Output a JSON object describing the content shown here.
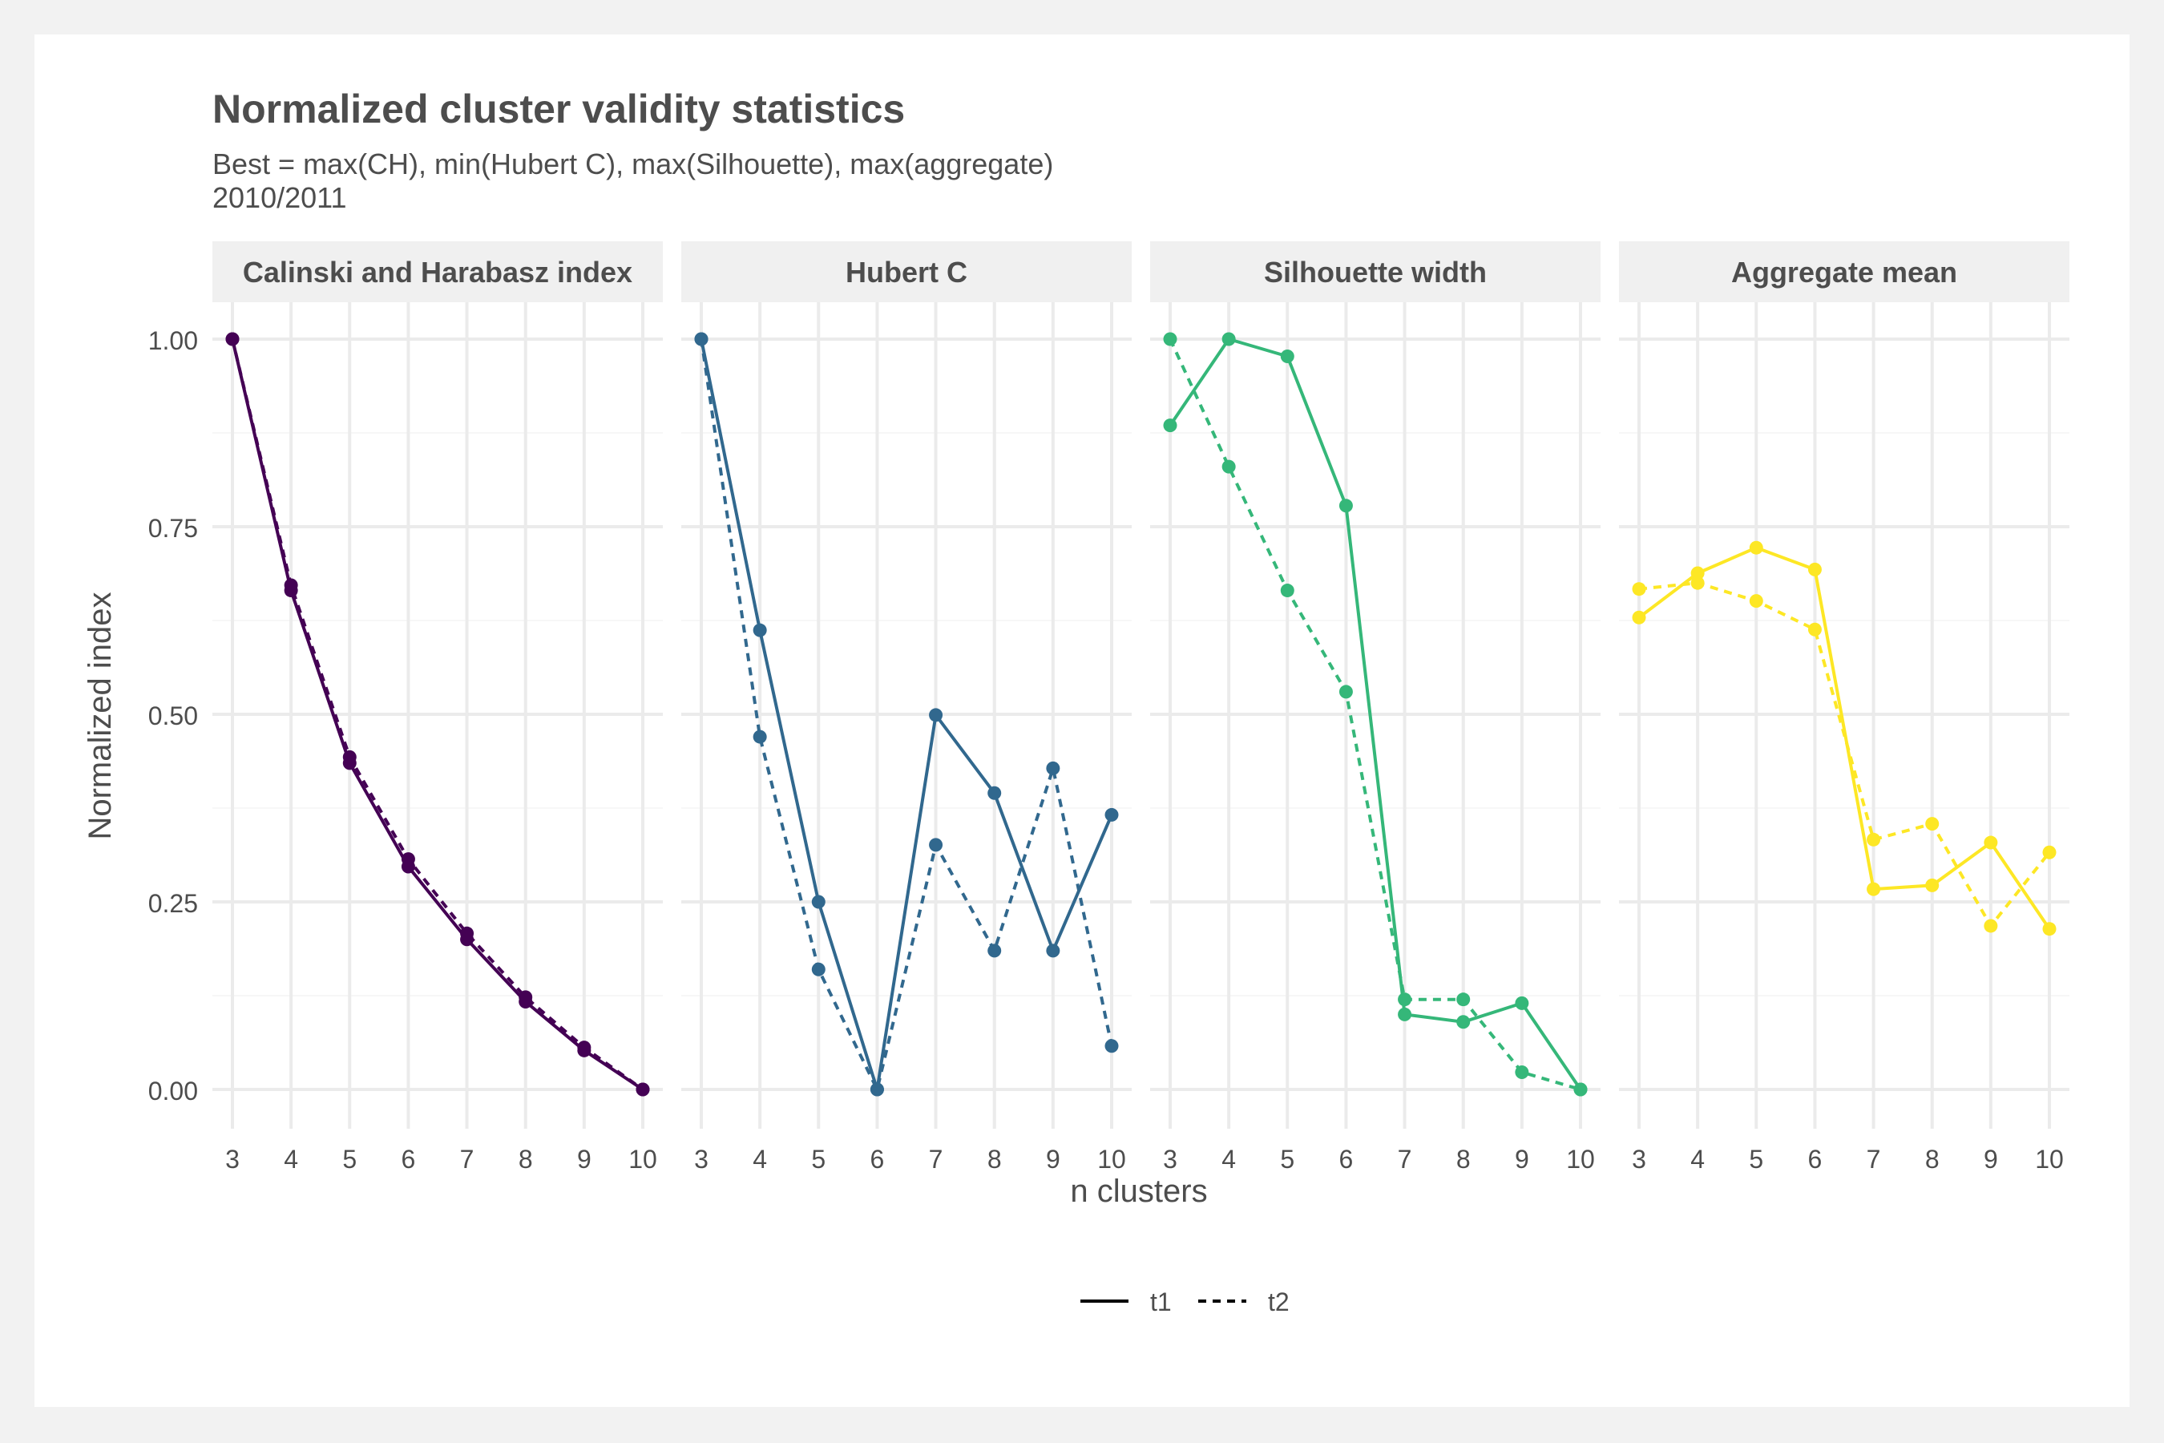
{
  "chart_data": {
    "type": "line",
    "title": "Normalized cluster validity statistics",
    "subtitle": [
      "Best = max(CH), min(Hubert C), max(Silhouette), max(aggregate)",
      "2010/2011"
    ],
    "xlabel": "n clusters",
    "ylabel": "Normalized index",
    "x": [
      3,
      4,
      5,
      6,
      7,
      8,
      9,
      10
    ],
    "ylim": [
      0,
      1
    ],
    "yticks": [
      0.0,
      0.25,
      0.5,
      0.75,
      1.0
    ],
    "ytick_labels": [
      "0.00",
      "0.25",
      "0.50",
      "0.75",
      "1.00"
    ],
    "grid": true,
    "legend": {
      "position": "bottom",
      "entries": [
        {
          "label": "t1",
          "linetype": "solid"
        },
        {
          "label": "t2",
          "linetype": "dashed"
        }
      ]
    },
    "panels": [
      {
        "title": "Calinski and Harabasz index",
        "color": "#440154",
        "series": [
          {
            "name": "t1",
            "values": [
              1.0,
              0.665,
              0.435,
              0.297,
              0.2,
              0.117,
              0.052,
              0.0
            ]
          },
          {
            "name": "t2",
            "values": [
              1.0,
              0.672,
              0.443,
              0.307,
              0.208,
              0.123,
              0.056,
              0.0
            ]
          }
        ]
      },
      {
        "title": "Hubert C",
        "color": "#31688e",
        "series": [
          {
            "name": "t1",
            "values": [
              1.0,
              0.612,
              0.25,
              0.0,
              0.499,
              0.395,
              0.185,
              0.366
            ]
          },
          {
            "name": "t2",
            "values": [
              1.0,
              0.47,
              0.16,
              0.0,
              0.326,
              0.185,
              0.428,
              0.058
            ]
          }
        ]
      },
      {
        "title": "Silhouette width",
        "color": "#35b779",
        "series": [
          {
            "name": "t1",
            "values": [
              0.885,
              1.0,
              0.977,
              0.778,
              0.1,
              0.09,
              0.115,
              0.0
            ]
          },
          {
            "name": "t2",
            "values": [
              1.0,
              0.83,
              0.665,
              0.53,
              0.12,
              0.12,
              0.023,
              0.0
            ]
          }
        ]
      },
      {
        "title": "Aggregate mean",
        "color": "#fde725",
        "series": [
          {
            "name": "t1",
            "values": [
              0.629,
              0.688,
              0.722,
              0.693,
              0.267,
              0.272,
              0.329,
              0.214
            ]
          },
          {
            "name": "t2",
            "values": [
              0.667,
              0.675,
              0.651,
              0.613,
              0.333,
              0.354,
              0.218,
              0.316
            ]
          }
        ]
      }
    ]
  }
}
